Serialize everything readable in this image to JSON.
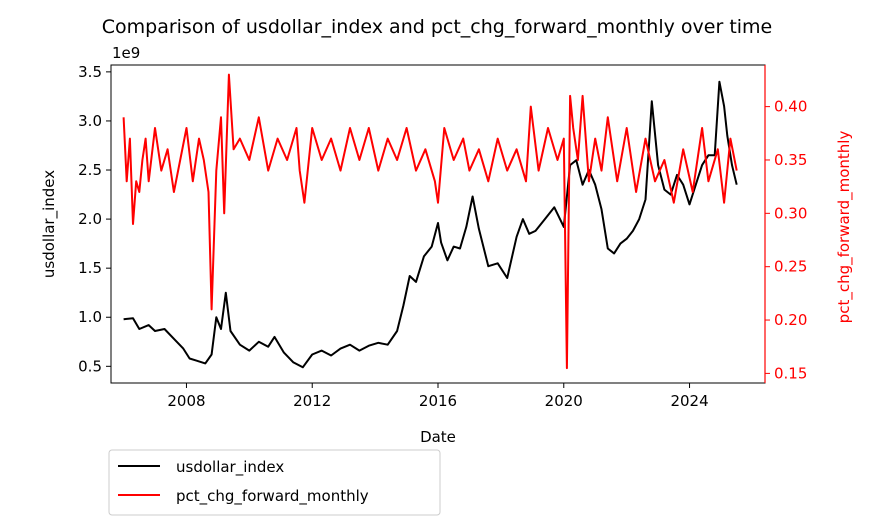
{
  "chart_data": {
    "type": "line",
    "title": "Comparison of usdollar_index and pct_chg_forward_monthly over time",
    "xlabel": "Date",
    "xlim": [
      2005.6,
      2026.4
    ],
    "x_ticks": [
      2008,
      2012,
      2016,
      2020,
      2024
    ],
    "left_axis": {
      "label": "usdollar_index",
      "offset_text": "1e9",
      "ylim": [
        0.33,
        3.57
      ],
      "ticks": [
        0.5,
        1.0,
        1.5,
        2.0,
        2.5,
        3.0,
        3.5
      ],
      "tick_labels": [
        "0.5",
        "1.0",
        "1.5",
        "2.0",
        "2.5",
        "3.0",
        "3.5"
      ]
    },
    "right_axis": {
      "label": "pct_chg_forward_monthly",
      "ylim": [
        0.141,
        0.439
      ],
      "ticks": [
        0.15,
        0.2,
        0.25,
        0.3,
        0.35,
        0.4
      ],
      "tick_labels": [
        "0.15",
        "0.20",
        "0.25",
        "0.30",
        "0.35",
        "0.40"
      ],
      "color": "#ff0000"
    },
    "legend_placement": "below-left",
    "series": [
      {
        "name": "usdollar_index",
        "axis": "left",
        "color": "#000000",
        "x": [
          2006.0,
          2006.3,
          2006.5,
          2006.8,
          2007.0,
          2007.3,
          2007.6,
          2007.9,
          2008.1,
          2008.3,
          2008.6,
          2008.8,
          2008.95,
          2009.1,
          2009.25,
          2009.4,
          2009.7,
          2010.0,
          2010.3,
          2010.6,
          2010.8,
          2011.1,
          2011.4,
          2011.7,
          2012.0,
          2012.3,
          2012.6,
          2012.9,
          2013.2,
          2013.5,
          2013.8,
          2014.1,
          2014.4,
          2014.7,
          2014.9,
          2015.1,
          2015.3,
          2015.55,
          2015.8,
          2016.0,
          2016.1,
          2016.3,
          2016.5,
          2016.7,
          2016.9,
          2017.1,
          2017.3,
          2017.6,
          2017.9,
          2018.2,
          2018.5,
          2018.7,
          2018.9,
          2019.1,
          2019.4,
          2019.7,
          2020.0,
          2020.2,
          2020.4,
          2020.6,
          2020.8,
          2021.0,
          2021.2,
          2021.4,
          2021.6,
          2021.8,
          2022.0,
          2022.2,
          2022.4,
          2022.6,
          2022.8,
          2023.0,
          2023.2,
          2023.4,
          2023.6,
          2023.8,
          2024.0,
          2024.2,
          2024.4,
          2024.6,
          2024.8,
          2024.95,
          2025.1,
          2025.2,
          2025.35,
          2025.5
        ],
        "values": [
          0.98,
          0.99,
          0.88,
          0.92,
          0.86,
          0.88,
          0.78,
          0.68,
          0.58,
          0.56,
          0.53,
          0.62,
          1.0,
          0.88,
          1.25,
          0.86,
          0.72,
          0.66,
          0.75,
          0.7,
          0.8,
          0.64,
          0.54,
          0.49,
          0.62,
          0.66,
          0.61,
          0.68,
          0.72,
          0.66,
          0.71,
          0.74,
          0.72,
          0.86,
          1.12,
          1.42,
          1.36,
          1.62,
          1.72,
          1.96,
          1.76,
          1.58,
          1.72,
          1.7,
          1.92,
          2.23,
          1.9,
          1.52,
          1.55,
          1.4,
          1.82,
          2.0,
          1.85,
          1.88,
          2.0,
          2.12,
          1.92,
          2.55,
          2.6,
          2.35,
          2.5,
          2.35,
          2.1,
          1.7,
          1.65,
          1.75,
          1.8,
          1.88,
          2.0,
          2.2,
          3.2,
          2.55,
          2.3,
          2.25,
          2.45,
          2.35,
          2.15,
          2.35,
          2.55,
          2.65,
          2.65,
          3.4,
          3.15,
          2.85,
          2.55,
          2.35
        ]
      },
      {
        "name": "pct_chg_forward_monthly",
        "axis": "right",
        "color": "#ff0000",
        "x": [
          2006.0,
          2006.1,
          2006.2,
          2006.3,
          2006.4,
          2006.5,
          2006.6,
          2006.7,
          2006.8,
          2007.0,
          2007.2,
          2007.4,
          2007.6,
          2007.8,
          2008.0,
          2008.2,
          2008.4,
          2008.55,
          2008.7,
          2008.8,
          2008.95,
          2009.1,
          2009.2,
          2009.35,
          2009.5,
          2009.7,
          2010.0,
          2010.3,
          2010.6,
          2010.9,
          2011.2,
          2011.5,
          2011.6,
          2011.75,
          2012.0,
          2012.3,
          2012.6,
          2012.9,
          2013.2,
          2013.5,
          2013.8,
          2014.1,
          2014.4,
          2014.7,
          2015.0,
          2015.3,
          2015.6,
          2015.9,
          2016.0,
          2016.2,
          2016.5,
          2016.8,
          2017.0,
          2017.3,
          2017.6,
          2017.9,
          2018.2,
          2018.5,
          2018.8,
          2018.95,
          2019.2,
          2019.5,
          2019.8,
          2020.0,
          2020.1,
          2020.2,
          2020.3,
          2020.45,
          2020.6,
          2020.8,
          2021.0,
          2021.2,
          2021.4,
          2021.7,
          2022.0,
          2022.3,
          2022.6,
          2022.9,
          2023.2,
          2023.5,
          2023.8,
          2024.1,
          2024.4,
          2024.6,
          2024.9,
          2025.1,
          2025.3,
          2025.5
        ],
        "values": [
          0.39,
          0.33,
          0.37,
          0.29,
          0.33,
          0.32,
          0.35,
          0.37,
          0.33,
          0.38,
          0.34,
          0.36,
          0.32,
          0.35,
          0.38,
          0.33,
          0.37,
          0.35,
          0.32,
          0.21,
          0.34,
          0.39,
          0.3,
          0.43,
          0.36,
          0.37,
          0.35,
          0.39,
          0.34,
          0.37,
          0.35,
          0.38,
          0.34,
          0.31,
          0.38,
          0.35,
          0.37,
          0.34,
          0.38,
          0.35,
          0.38,
          0.34,
          0.37,
          0.35,
          0.38,
          0.34,
          0.36,
          0.33,
          0.31,
          0.38,
          0.35,
          0.37,
          0.34,
          0.36,
          0.33,
          0.37,
          0.34,
          0.36,
          0.33,
          0.4,
          0.34,
          0.38,
          0.35,
          0.37,
          0.155,
          0.41,
          0.38,
          0.35,
          0.41,
          0.33,
          0.37,
          0.34,
          0.39,
          0.33,
          0.38,
          0.32,
          0.37,
          0.33,
          0.35,
          0.31,
          0.36,
          0.32,
          0.38,
          0.33,
          0.36,
          0.31,
          0.37,
          0.34
        ]
      }
    ]
  }
}
